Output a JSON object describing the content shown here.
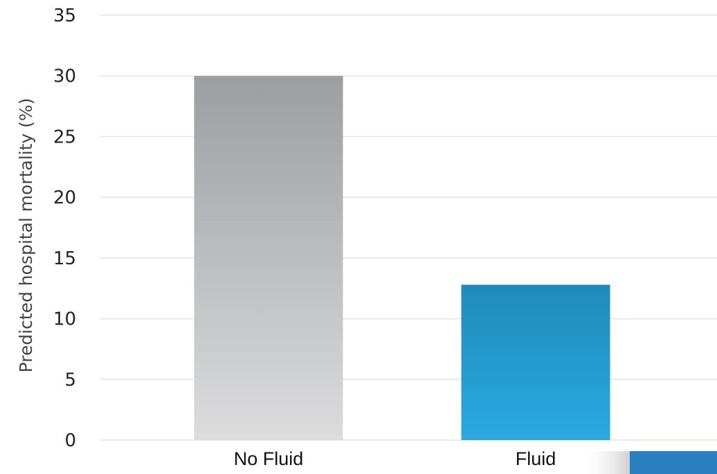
{
  "chart_data": {
    "type": "bar",
    "title": "",
    "xlabel": "",
    "ylabel": "Predicted hospital mortality (%)",
    "categories": [
      "No Fluid",
      "Fluid"
    ],
    "values": [
      30,
      12.8
    ],
    "ylim": [
      0,
      35
    ],
    "yticks": [
      0,
      5,
      10,
      15,
      20,
      25,
      30,
      35
    ],
    "grid": true,
    "legend": "none",
    "colors": {
      "No Fluid": {
        "top": "#9c9ea2",
        "bottom": "#dcdcdd"
      },
      "Fluid": {
        "top": "#1f8bbb",
        "bottom": "#2aa9e0"
      },
      "grid": "#e3e3e3",
      "corner_block": "#2b7fc1",
      "corner_gradient": "#cfcfcf"
    }
  }
}
